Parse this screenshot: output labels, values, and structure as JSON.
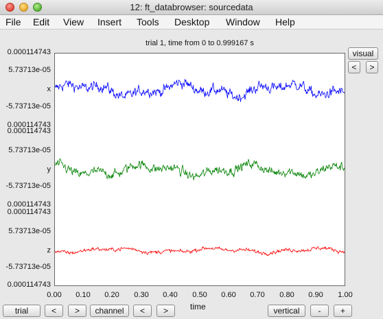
{
  "window": {
    "title": "12: ft_databrowser: sourcedata"
  },
  "menu": [
    "File",
    "Edit",
    "View",
    "Insert",
    "Tools",
    "Desktop",
    "Window",
    "Help"
  ],
  "chart_data": {
    "type": "line",
    "title": "trial 1, time from 0 to 0.999167 s",
    "xlabel": "time",
    "xlim": [
      0,
      1
    ],
    "x_ticks": [
      "0.00",
      "0.10",
      "0.20",
      "0.30",
      "0.40",
      "0.50",
      "0.60",
      "0.70",
      "0.80",
      "0.90",
      "1.00"
    ],
    "y_tick_labels": [
      "0.000114743",
      "5.73713e-05",
      "-5.73713e-05",
      "0.000114743"
    ],
    "channels": [
      {
        "name": "x",
        "color": "#0000ff",
        "amplitude": 1.0
      },
      {
        "name": "y",
        "color": "#008000",
        "amplitude": 0.9
      },
      {
        "name": "z",
        "color": "#ff0000",
        "amplitude": 0.35
      }
    ],
    "grid": false
  },
  "buttons": {
    "visual": "visual",
    "prev_top": "<",
    "next_top": ">",
    "trial": "trial",
    "trial_prev": "<",
    "trial_next": ">",
    "channel": "channel",
    "channel_prev": "<",
    "channel_next": ">",
    "vertical": "vertical",
    "minus": "-",
    "plus": "+"
  },
  "colors": {
    "x": "#0000ff",
    "y": "#008000",
    "z": "#ff0000"
  }
}
